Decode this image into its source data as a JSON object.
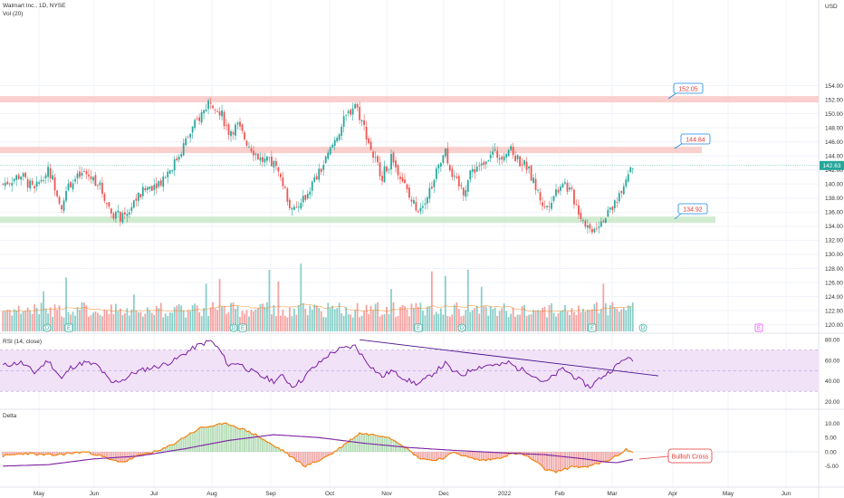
{
  "header": {
    "symbol": "Walmart Inc., 1D, NYSE",
    "volume_label": "Vol (20)",
    "currency": "USD"
  },
  "rsi": {
    "label": "RSI (14, close)"
  },
  "delta": {
    "label": "Delta"
  },
  "callouts": {
    "level_high": "152.05",
    "level_mid": "144.84",
    "level_low": "134.92",
    "note": "Bullish Cross"
  },
  "price_tag": "142.63",
  "event_markers": [
    "D",
    "E",
    "D",
    "E",
    "E",
    "D",
    "E",
    "D",
    "E"
  ],
  "colors": {
    "up": "#26a69a",
    "down": "#ef5350",
    "resistance_zone": "#f8c8c6",
    "support_zone": "#c9e8c9",
    "rsi_line": "#7b1fa2",
    "rsi_band": "#f1e2f8",
    "delta_fast": "#f57c00",
    "delta_slow": "#7b1fa2",
    "trendline": "#4a148c"
  },
  "chart_data": [
    {
      "type": "candlestick",
      "title": "Walmart Inc., 1D, NYSE",
      "x_ticks": [
        "May",
        "Jun",
        "Jul",
        "Aug",
        "Sep",
        "Oct",
        "Nov",
        "Dec",
        "2022",
        "Feb",
        "Mar",
        "Apr",
        "May",
        "Jun"
      ],
      "y_ticks": [
        "154.00",
        "152.00",
        "150.00",
        "148.00",
        "146.00",
        "144.00",
        "142.00",
        "140.00",
        "138.00",
        "136.00",
        "134.00",
        "132.00",
        "130.00",
        "128.00",
        "126.00",
        "124.00",
        "122.00",
        "120.00"
      ],
      "ylim": [
        119,
        155
      ],
      "last_price": 142.63,
      "horizontal_zones": [
        {
          "name": "152.05",
          "value": 152.05,
          "kind": "resistance"
        },
        {
          "name": "144.84",
          "value": 144.84,
          "kind": "resistance"
        },
        {
          "name": "134.92",
          "value": 134.92,
          "kind": "support"
        }
      ],
      "close_anchors": [
        [
          0,
          140.0
        ],
        [
          8,
          141.3
        ],
        [
          14,
          139.0
        ],
        [
          20,
          142.5
        ],
        [
          26,
          137.0
        ],
        [
          30,
          140.2
        ],
        [
          36,
          141.5
        ],
        [
          42,
          140.3
        ],
        [
          48,
          136.0
        ],
        [
          54,
          135.0
        ],
        [
          58,
          137.5
        ],
        [
          64,
          139.5
        ],
        [
          70,
          140.5
        ],
        [
          76,
          143.0
        ],
        [
          80,
          145.5
        ],
        [
          86,
          149.0
        ],
        [
          92,
          152.0
        ],
        [
          96,
          150.5
        ],
        [
          100,
          147.5
        ],
        [
          104,
          148.2
        ],
        [
          108,
          146.0
        ],
        [
          114,
          143.5
        ],
        [
          120,
          142.8
        ],
        [
          124,
          140.0
        ],
        [
          128,
          136.0
        ],
        [
          132,
          137.0
        ],
        [
          136,
          139.5
        ],
        [
          140,
          141.5
        ],
        [
          144,
          144.0
        ],
        [
          148,
          147.0
        ],
        [
          152,
          149.5
        ],
        [
          156,
          151.5
        ],
        [
          160,
          148.0
        ],
        [
          164,
          144.0
        ],
        [
          168,
          141.2
        ],
        [
          172,
          143.5
        ],
        [
          176,
          141.5
        ],
        [
          180,
          138.0
        ],
        [
          184,
          136.5
        ],
        [
          188,
          138.5
        ],
        [
          192,
          141.5
        ],
        [
          196,
          144.5
        ],
        [
          200,
          140.5
        ],
        [
          204,
          139.0
        ],
        [
          208,
          142.0
        ],
        [
          212,
          143.0
        ],
        [
          216,
          144.5
        ],
        [
          220,
          144.0
        ],
        [
          224,
          145.0
        ],
        [
          228,
          143.5
        ],
        [
          232,
          142.5
        ],
        [
          236,
          139.5
        ],
        [
          240,
          136.5
        ],
        [
          244,
          138.5
        ],
        [
          248,
          140.5
        ],
        [
          252,
          138.5
        ],
        [
          256,
          135.5
        ],
        [
          260,
          133.5
        ],
        [
          264,
          134.5
        ],
        [
          268,
          136.0
        ],
        [
          272,
          138.0
        ],
        [
          276,
          141.0
        ],
        [
          278,
          142.63
        ]
      ],
      "volume": {
        "label": "Vol (20)",
        "ylim": [
          0,
          100
        ],
        "spike_bars": [
          [
            18,
            52
          ],
          [
            28,
            70
          ],
          [
            58,
            48
          ],
          [
            90,
            62
          ],
          [
            96,
            68
          ],
          [
            118,
            80
          ],
          [
            122,
            65
          ],
          [
            132,
            88
          ],
          [
            172,
            55
          ],
          [
            190,
            78
          ],
          [
            196,
            72
          ],
          [
            206,
            80
          ],
          [
            212,
            58
          ],
          [
            266,
            62
          ],
          [
            270,
            38
          ]
        ]
      }
    },
    {
      "type": "line",
      "title": "RSI (14, close)",
      "y_ticks": [
        "80.00",
        "60.00",
        "40.00",
        "20.00"
      ],
      "ylim": [
        16,
        84
      ],
      "band": [
        30,
        70
      ],
      "series": [
        {
          "name": "RSI (14, close)"
        }
      ],
      "anchors": [
        [
          0,
          55
        ],
        [
          8,
          58
        ],
        [
          14,
          48
        ],
        [
          20,
          60
        ],
        [
          26,
          42
        ],
        [
          30,
          53
        ],
        [
          36,
          58
        ],
        [
          42,
          55
        ],
        [
          48,
          38
        ],
        [
          54,
          42
        ],
        [
          58,
          48
        ],
        [
          64,
          52
        ],
        [
          70,
          55
        ],
        [
          76,
          60
        ],
        [
          80,
          66
        ],
        [
          86,
          74
        ],
        [
          92,
          79
        ],
        [
          96,
          70
        ],
        [
          100,
          55
        ],
        [
          104,
          58
        ],
        [
          108,
          52
        ],
        [
          114,
          45
        ],
        [
          120,
          40
        ],
        [
          124,
          45
        ],
        [
          128,
          35
        ],
        [
          132,
          40
        ],
        [
          136,
          50
        ],
        [
          140,
          57
        ],
        [
          144,
          65
        ],
        [
          148,
          70
        ],
        [
          152,
          72
        ],
        [
          156,
          74
        ],
        [
          160,
          62
        ],
        [
          164,
          52
        ],
        [
          168,
          44
        ],
        [
          172,
          50
        ],
        [
          176,
          45
        ],
        [
          180,
          40
        ],
        [
          184,
          37
        ],
        [
          188,
          43
        ],
        [
          192,
          50
        ],
        [
          196,
          57
        ],
        [
          200,
          48
        ],
        [
          204,
          46
        ],
        [
          208,
          52
        ],
        [
          212,
          54
        ],
        [
          216,
          56
        ],
        [
          220,
          55
        ],
        [
          224,
          58
        ],
        [
          228,
          52
        ],
        [
          232,
          50
        ],
        [
          236,
          44
        ],
        [
          240,
          38
        ],
        [
          244,
          45
        ],
        [
          248,
          52
        ],
        [
          252,
          46
        ],
        [
          256,
          40
        ],
        [
          260,
          34
        ],
        [
          264,
          42
        ],
        [
          268,
          48
        ],
        [
          272,
          55
        ],
        [
          276,
          63
        ],
        [
          278,
          60
        ]
      ],
      "trendline": {
        "from": [
          158,
          80
        ],
        "to": [
          278,
          45
        ]
      }
    },
    {
      "type": "line",
      "title": "Delta",
      "y_ticks": [
        "10.00",
        "5.00",
        "0.00",
        "-5.00"
      ],
      "ylim": [
        -8,
        12
      ],
      "series": [
        {
          "name": "Delta fast"
        },
        {
          "name": "Delta slow"
        }
      ],
      "fast_anchors": [
        [
          0,
          -1.5
        ],
        [
          10,
          -0.5
        ],
        [
          16,
          -1.0
        ],
        [
          22,
          -1.2
        ],
        [
          30,
          -0.5
        ],
        [
          36,
          0.0
        ],
        [
          42,
          -1.0
        ],
        [
          48,
          -3.0
        ],
        [
          54,
          -3.5
        ],
        [
          58,
          -2.0
        ],
        [
          64,
          -0.5
        ],
        [
          70,
          0.5
        ],
        [
          76,
          3.0
        ],
        [
          82,
          6.0
        ],
        [
          88,
          8.5
        ],
        [
          96,
          9.5
        ],
        [
          100,
          9.8
        ],
        [
          106,
          8.0
        ],
        [
          112,
          6.0
        ],
        [
          120,
          2.0
        ],
        [
          124,
          0.5
        ],
        [
          128,
          -2.0
        ],
        [
          134,
          -5.0
        ],
        [
          140,
          -3.0
        ],
        [
          146,
          -0.5
        ],
        [
          152,
          3.0
        ],
        [
          158,
          6.5
        ],
        [
          164,
          6.0
        ],
        [
          170,
          5.5
        ],
        [
          176,
          3.0
        ],
        [
          180,
          0.5
        ],
        [
          184,
          -2.0
        ],
        [
          190,
          -3.0
        ],
        [
          196,
          -2.0
        ],
        [
          200,
          0.0
        ],
        [
          206,
          -2.0
        ],
        [
          212,
          -3.0
        ],
        [
          218,
          -2.5
        ],
        [
          224,
          -1.0
        ],
        [
          228,
          -0.5
        ],
        [
          232,
          -1.5
        ],
        [
          236,
          -3.5
        ],
        [
          240,
          -6.0
        ],
        [
          244,
          -7.0
        ],
        [
          248,
          -6.5
        ],
        [
          252,
          -5.0
        ],
        [
          258,
          -5.5
        ],
        [
          264,
          -4.0
        ],
        [
          268,
          -3.0
        ],
        [
          272,
          -1.5
        ],
        [
          276,
          1.0
        ],
        [
          278,
          0.0
        ]
      ],
      "slow_anchors": [
        [
          0,
          -5.0
        ],
        [
          20,
          -4.5
        ],
        [
          40,
          -2.5
        ],
        [
          60,
          -1.5
        ],
        [
          80,
          1.0
        ],
        [
          100,
          4.0
        ],
        [
          120,
          6.0
        ],
        [
          140,
          5.0
        ],
        [
          160,
          3.0
        ],
        [
          180,
          1.5
        ],
        [
          200,
          0.5
        ],
        [
          220,
          -0.3
        ],
        [
          240,
          -1.0
        ],
        [
          258,
          -2.5
        ],
        [
          266,
          -3.5
        ],
        [
          272,
          -3.8
        ],
        [
          278,
          -2.8
        ]
      ]
    }
  ]
}
